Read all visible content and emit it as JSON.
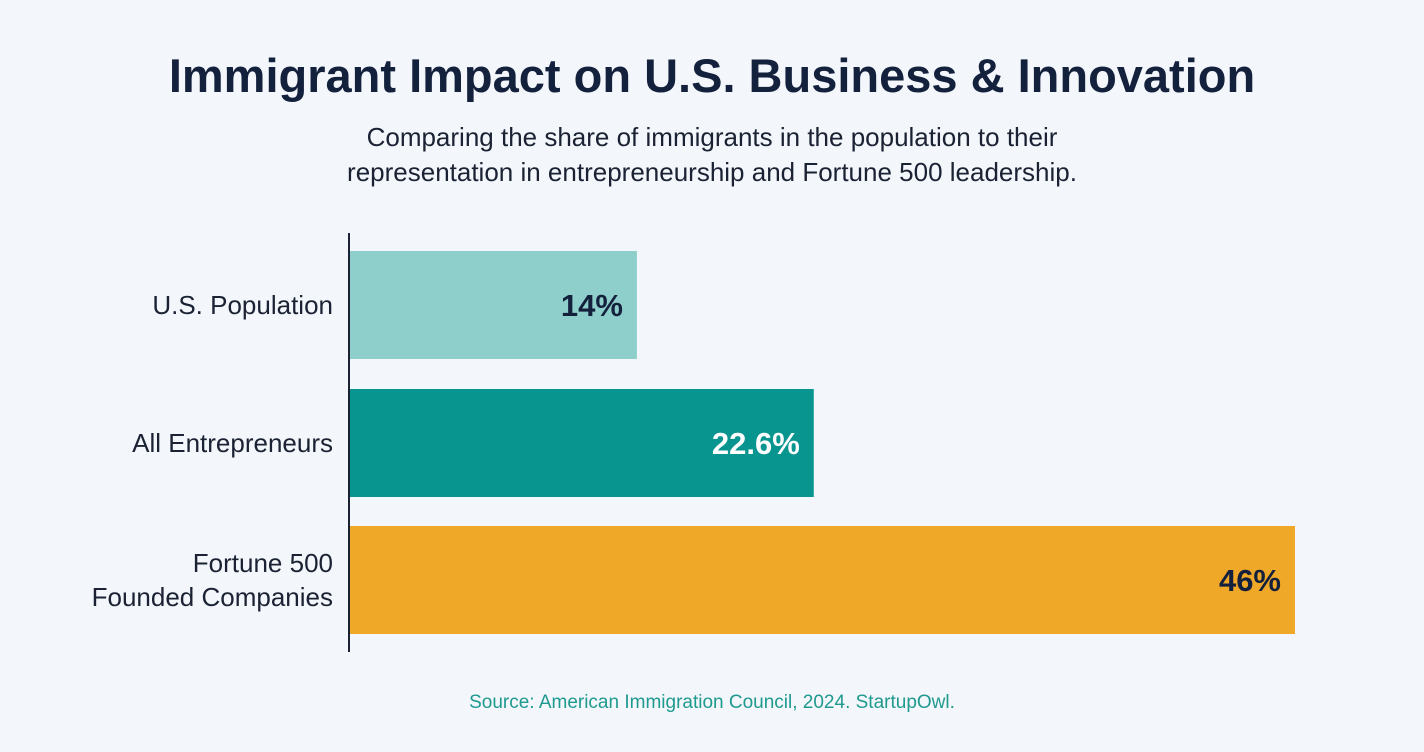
{
  "title": "Immigrant Impact on U.S. Business & Innovation",
  "subtitle": "Comparing the share of immigrants in the population to their representation in entrepreneurship and Fortune 500 leadership.",
  "source": "Source: American Immigration Council, 2024. StartupOwl.",
  "chart_data": {
    "type": "bar",
    "orientation": "horizontal",
    "title": "Immigrant Impact on U.S. Business & Innovation",
    "categories": [
      [
        "U.S. Population"
      ],
      [
        "All Entrepreneurs"
      ],
      [
        "Fortune 500",
        "Founded Companies"
      ]
    ],
    "values": [
      14,
      22.6,
      46
    ],
    "value_labels": [
      "14%",
      "22.6%",
      "46%"
    ],
    "colors": [
      "#8ecfcb",
      "#08958f",
      "#f0a829"
    ],
    "label_colors": [
      "#14213d",
      "#ffffff",
      "#14213d"
    ],
    "xlim": [
      0,
      46
    ],
    "grid": false,
    "legend": "none"
  }
}
